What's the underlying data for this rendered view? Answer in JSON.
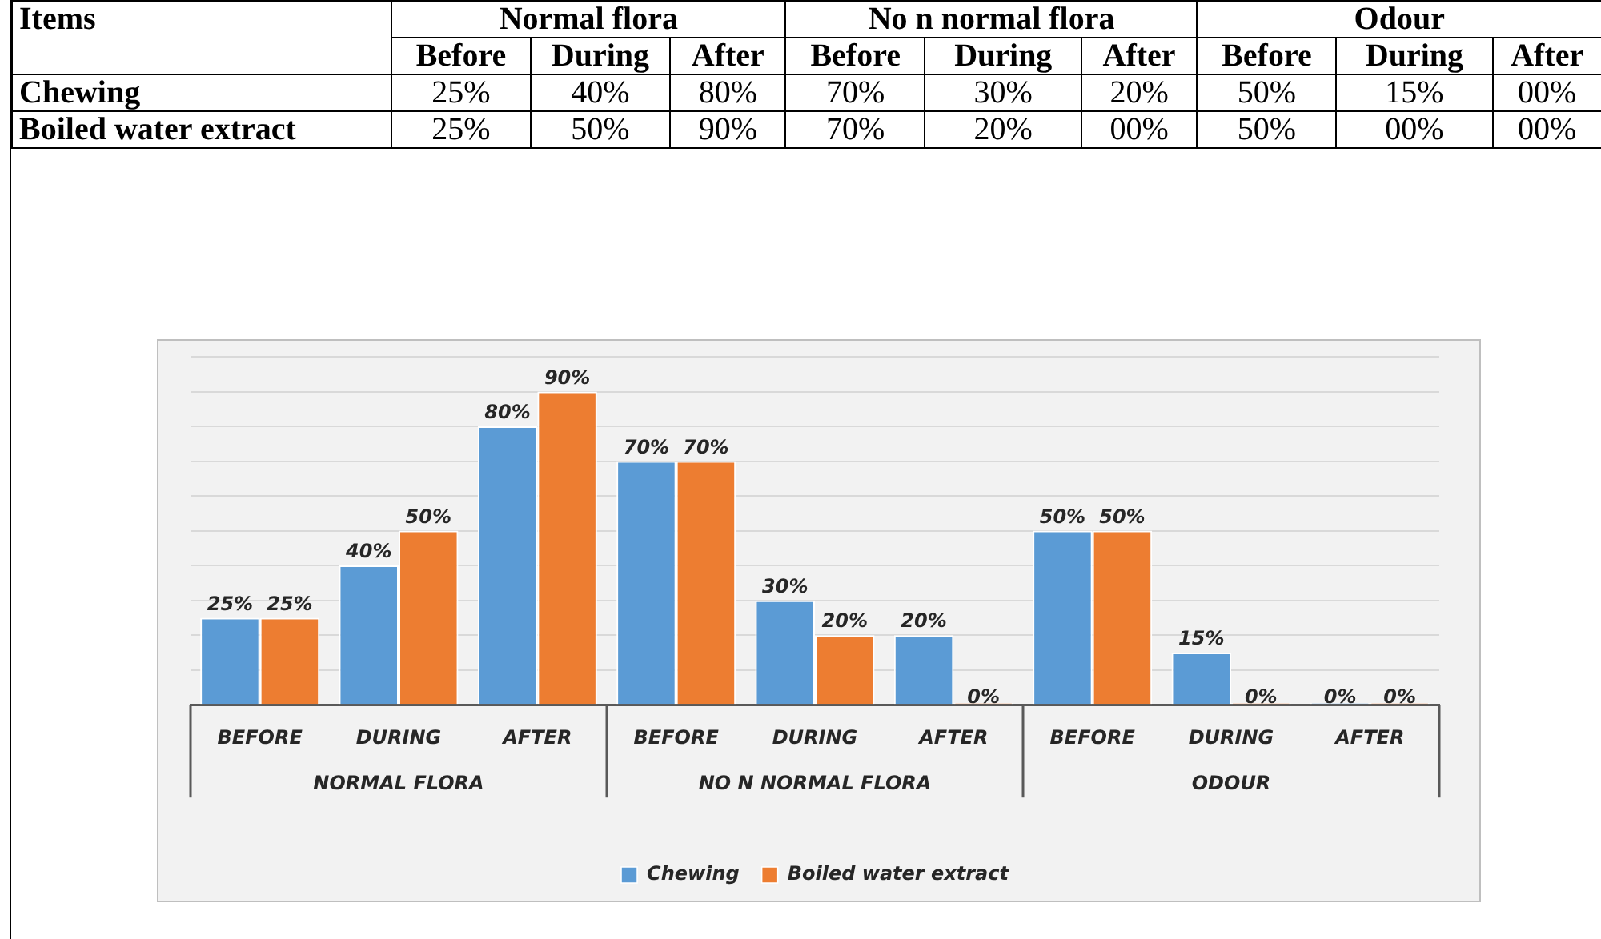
{
  "chart_data": [
    {
      "type": "other",
      "annotations": [
        "Items",
        "Normal flora",
        "No n normal flora",
        "Odour",
        "Before",
        "During",
        "After",
        "Before",
        "During",
        "After",
        "Before",
        "During",
        "After",
        "Chewing",
        "25%",
        "40%",
        "80%",
        "70%",
        "30%",
        "20%",
        "50%",
        "15%",
        "00%",
        "Boiled water extract",
        "25%",
        "50%",
        "90%",
        "70%",
        "20%",
        "00%",
        "50%",
        "00%",
        "00%"
      ]
    },
    {
      "type": "bar",
      "categories": [
        "BEFORE",
        "DURING",
        "AFTER",
        "BEFORE",
        "DURING",
        "AFTER",
        "BEFORE",
        "DURING",
        "AFTER"
      ],
      "annotations": [
        "NORMAL FLORA",
        "NO N NORMAL FLORA",
        "ODOUR"
      ],
      "series": [
        {
          "name": "Chewing",
          "color": "#5b9bd5",
          "values": [
            25,
            40,
            80,
            70,
            30,
            20,
            50,
            15,
            0
          ],
          "value_labels": [
            "25%",
            "40%",
            "80%",
            "70%",
            "30%",
            "20%",
            "50%",
            "15%",
            "0%"
          ]
        },
        {
          "name": "Boiled water extract",
          "color": "#ed7d31",
          "values": [
            25,
            50,
            90,
            70,
            20,
            0,
            50,
            0,
            0
          ],
          "value_labels": [
            "25%",
            "50%",
            "90%",
            "70%",
            "20%",
            "0%",
            "50%",
            "0%",
            "0%"
          ]
        }
      ],
      "ylim": [
        0,
        100
      ],
      "yticks": [
        {
          "value": 0,
          "label": null
        },
        {
          "value": 10,
          "label": null
        },
        {
          "value": 20,
          "label": null
        },
        {
          "value": 30,
          "label": null
        },
        {
          "value": 40,
          "label": null
        },
        {
          "value": 50,
          "label": null
        },
        {
          "value": 60,
          "label": null
        },
        {
          "value": 70,
          "label": null
        },
        {
          "value": 80,
          "label": null
        },
        {
          "value": 90,
          "label": null
        },
        {
          "value": 100,
          "label": null
        }
      ],
      "tick_labels": "x",
      "grid": "y",
      "legend": "bottom"
    }
  ]
}
